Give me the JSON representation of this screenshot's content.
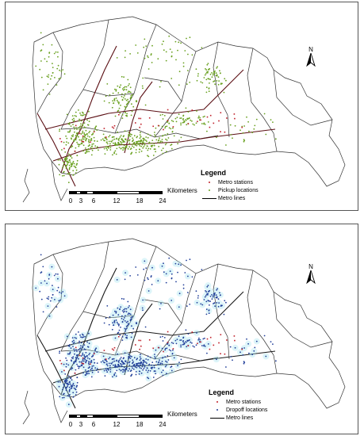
{
  "maps": [
    {
      "id": "top",
      "point_color": "#6aa121",
      "legend": {
        "title": "Legend",
        "items": [
          {
            "label": "Metro stations",
            "symbol": "dot",
            "color": "#c0202a"
          },
          {
            "label": "Pickup locations",
            "symbol": "dot",
            "color": "#6aa121"
          },
          {
            "label": "Metro lines",
            "symbol": "line",
            "color": "#000000"
          }
        ]
      }
    },
    {
      "id": "bottom",
      "point_color": "#23409a",
      "legend": {
        "title": "Legend",
        "items": [
          {
            "label": "Metro stations",
            "symbol": "dot",
            "color": "#c0202a"
          },
          {
            "label": "Dropoff locations",
            "symbol": "dot",
            "color": "#23409a"
          },
          {
            "label": "Metro lines",
            "symbol": "line",
            "color": "#000000"
          }
        ]
      }
    }
  ],
  "north_arrow": {
    "label": "N"
  },
  "scale_bar": {
    "unit": "Kilometers",
    "ticks": [
      "0",
      "3",
      "6",
      "12",
      "18",
      "24"
    ]
  }
}
